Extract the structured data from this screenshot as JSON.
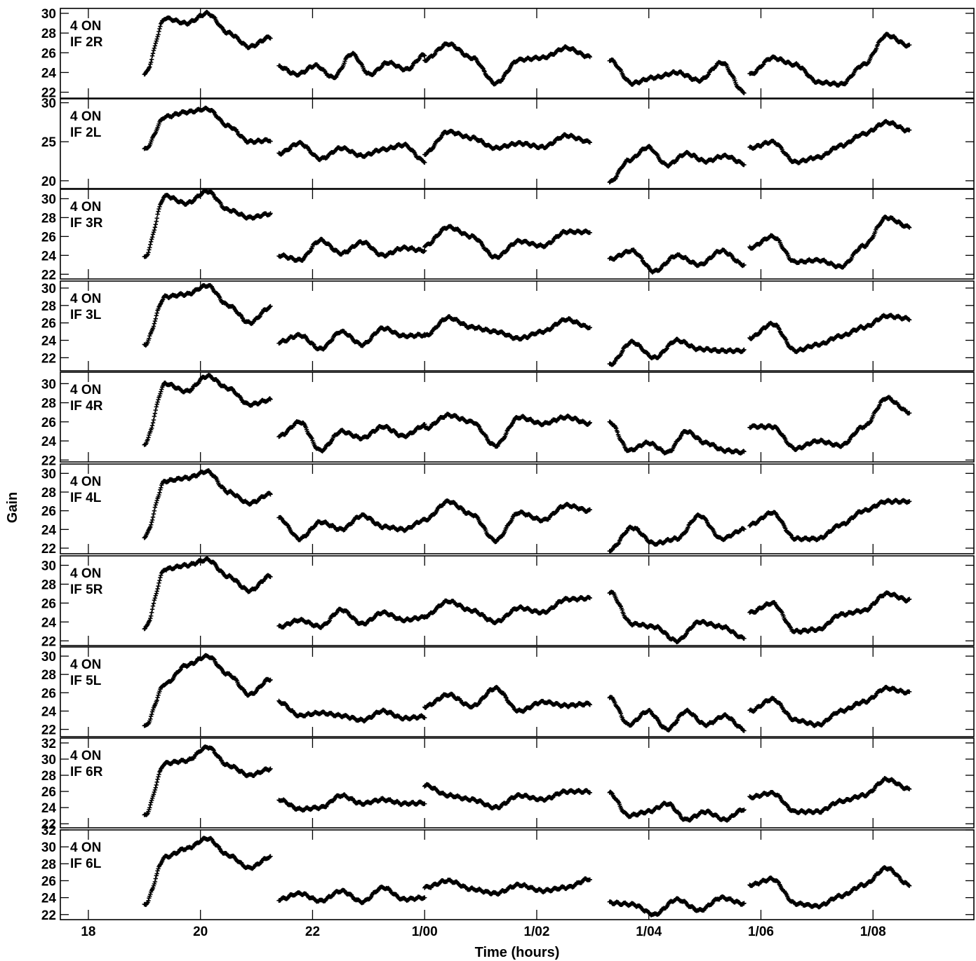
{
  "chart_data": {
    "type": "scatter",
    "title": "",
    "xlabel": "Time (hours)",
    "ylabel": "Gain",
    "xlim": [
      17.5,
      33.8
    ],
    "grid": false,
    "x_ticks": [
      {
        "value": 18,
        "label": "18"
      },
      {
        "value": 20,
        "label": "20"
      },
      {
        "value": 22,
        "label": "22"
      },
      {
        "value": 24,
        "label": "1/00"
      },
      {
        "value": 26,
        "label": "1/02"
      },
      {
        "value": 28,
        "label": "1/04"
      },
      {
        "value": 30,
        "label": "1/06"
      },
      {
        "value": 32,
        "label": "1/08"
      }
    ],
    "segments": [
      [
        19.0,
        21.25
      ],
      [
        21.4,
        24.0
      ],
      [
        24.0,
        26.95
      ],
      [
        27.3,
        29.7
      ],
      [
        29.8,
        32.65
      ]
    ],
    "panels": [
      {
        "label1": "4 ON",
        "label2": "IF 2R",
        "ylim": [
          21.4,
          30.5
        ],
        "yticks": [
          22,
          24,
          26,
          28,
          30
        ],
        "series": [
          [
            23.8,
            29.5,
            29.0,
            30.0,
            28.0,
            26.6,
            27.6
          ],
          [
            24.6,
            23.8,
            24.7,
            23.5,
            25.9,
            23.8,
            25.0,
            24.3,
            25.8
          ],
          [
            25.3,
            26.9,
            25.5,
            22.9,
            25.3,
            25.5,
            26.5,
            25.6
          ],
          [
            25.3,
            22.9,
            23.5,
            24.0,
            23.2,
            25.0,
            22.0
          ],
          [
            23.8,
            25.5,
            24.8,
            23.0,
            22.8,
            24.8,
            27.8,
            26.7
          ]
        ]
      },
      {
        "label1": "4 ON",
        "label2": "IF 2L",
        "ylim": [
          19.0,
          30.5
        ],
        "yticks": [
          20,
          25,
          30
        ],
        "series": [
          [
            24.0,
            28.2,
            28.8,
            29.2,
            27.0,
            25.0,
            25.2
          ],
          [
            23.5,
            24.8,
            22.8,
            24.2,
            23.2,
            24.0,
            24.6,
            22.5
          ],
          [
            23.5,
            26.3,
            25.5,
            24.2,
            24.8,
            24.3,
            25.8,
            25.0
          ],
          [
            19.8,
            22.6,
            24.3,
            22.0,
            23.5,
            22.5,
            23.2,
            22.2
          ],
          [
            24.2,
            25.0,
            22.4,
            23.0,
            24.5,
            26.0,
            27.5,
            26.4
          ]
        ]
      },
      {
        "label1": "4 ON",
        "label2": "IF 3R",
        "ylim": [
          21.5,
          31.0
        ],
        "yticks": [
          22,
          24,
          26,
          28,
          30
        ],
        "series": [
          [
            23.8,
            30.3,
            29.5,
            30.8,
            28.8,
            28.0,
            28.4
          ],
          [
            24.0,
            23.5,
            25.6,
            24.2,
            25.4,
            24.0,
            24.8,
            24.5
          ],
          [
            25.0,
            27.0,
            26.0,
            23.8,
            25.5,
            25.0,
            26.5,
            26.5
          ],
          [
            23.6,
            24.5,
            22.3,
            24.0,
            23.0,
            24.5,
            23.0
          ],
          [
            24.8,
            26.0,
            23.3,
            23.5,
            22.8,
            25.0,
            28.0,
            27.0
          ]
        ]
      },
      {
        "label1": "4 ON",
        "label2": "IF 3L",
        "ylim": [
          20.5,
          30.8
        ],
        "yticks": [
          22,
          24,
          26,
          28,
          30
        ],
        "series": [
          [
            23.5,
            29.0,
            29.3,
            30.3,
            28.0,
            26.0,
            27.8
          ],
          [
            23.8,
            24.6,
            23.0,
            25.0,
            23.5,
            25.4,
            24.5,
            24.6
          ],
          [
            24.5,
            26.6,
            25.5,
            25.0,
            24.2,
            25.0,
            26.4,
            25.5
          ],
          [
            21.2,
            23.8,
            22.0,
            24.0,
            23.0,
            22.8,
            22.8
          ],
          [
            24.3,
            25.9,
            22.8,
            23.5,
            24.5,
            25.5,
            26.8,
            26.5
          ]
        ]
      },
      {
        "label1": "4 ON",
        "label2": "IF 4R",
        "ylim": [
          21.8,
          31.2
        ],
        "yticks": [
          22,
          24,
          26,
          28,
          30
        ],
        "series": [
          [
            23.7,
            30.0,
            29.2,
            30.8,
            29.5,
            27.8,
            28.3
          ],
          [
            24.5,
            26.0,
            23.0,
            25.0,
            24.3,
            25.5,
            24.5,
            25.6
          ],
          [
            25.3,
            26.7,
            26.0,
            23.5,
            26.5,
            25.8,
            26.5,
            25.8
          ],
          [
            26.0,
            23.0,
            23.8,
            22.8,
            25.0,
            23.8,
            23.0,
            22.8
          ],
          [
            25.5,
            25.5,
            23.2,
            24.0,
            23.5,
            25.5,
            28.5,
            27.0
          ]
        ]
      },
      {
        "label1": "4 ON",
        "label2": "IF 4L",
        "ylim": [
          21.4,
          31.0
        ],
        "yticks": [
          22,
          24,
          26,
          28,
          30
        ],
        "series": [
          [
            23.2,
            29.2,
            29.5,
            30.2,
            28.0,
            26.8,
            27.8
          ],
          [
            25.2,
            23.0,
            24.8,
            24.0,
            25.5,
            24.3,
            24.0,
            25.0
          ],
          [
            25.0,
            27.0,
            25.6,
            22.8,
            25.8,
            25.0,
            26.6,
            26.0
          ],
          [
            21.8,
            24.2,
            22.5,
            23.0,
            25.5,
            23.0,
            24.0
          ],
          [
            24.5,
            25.8,
            23.0,
            23.0,
            24.5,
            26.0,
            27.0,
            27.0
          ]
        ]
      },
      {
        "label1": "4 ON",
        "label2": "IF 5R",
        "ylim": [
          21.5,
          31.0
        ],
        "yticks": [
          22,
          24,
          26,
          28,
          30
        ],
        "series": [
          [
            23.3,
            29.6,
            30.0,
            30.6,
            28.8,
            27.3,
            28.9
          ],
          [
            23.5,
            24.2,
            23.5,
            25.3,
            23.8,
            25.0,
            24.2,
            24.5
          ],
          [
            24.6,
            26.2,
            25.2,
            24.0,
            25.5,
            25.0,
            26.4,
            26.5
          ],
          [
            27.2,
            23.8,
            23.5,
            22.0,
            24.0,
            23.5,
            22.3
          ],
          [
            25.0,
            26.0,
            23.0,
            23.2,
            24.8,
            25.2,
            27.0,
            26.3
          ]
        ]
      },
      {
        "label1": "4 ON",
        "label2": "IF 5L",
        "ylim": [
          21.2,
          31.0
        ],
        "yticks": [
          22,
          24,
          26,
          28,
          30
        ],
        "series": [
          [
            22.3,
            27.0,
            29.0,
            30.0,
            28.0,
            25.8,
            27.5
          ],
          [
            25.0,
            23.5,
            23.8,
            23.5,
            23.0,
            24.0,
            23.2,
            23.4
          ],
          [
            24.5,
            25.8,
            24.5,
            26.5,
            24.0,
            25.0,
            24.6,
            24.8
          ],
          [
            25.5,
            22.5,
            24.0,
            22.0,
            24.0,
            22.5,
            23.5,
            22.0
          ],
          [
            24.0,
            25.3,
            23.0,
            22.5,
            24.0,
            25.0,
            26.5,
            26.0
          ]
        ]
      },
      {
        "label1": "4 ON",
        "label2": "IF 6R",
        "ylim": [
          21.5,
          32.6
        ],
        "yticks": [
          22,
          24,
          26,
          28,
          30,
          32
        ],
        "series": [
          [
            23.0,
            29.5,
            29.8,
            31.5,
            29.2,
            28.0,
            28.8
          ],
          [
            25.0,
            23.8,
            24.0,
            25.5,
            24.5,
            25.0,
            24.5,
            24.6
          ],
          [
            26.8,
            25.5,
            25.0,
            24.0,
            25.5,
            25.0,
            26.0,
            26.0
          ],
          [
            25.8,
            23.0,
            23.5,
            24.5,
            22.5,
            23.5,
            22.5,
            23.8
          ],
          [
            25.3,
            25.8,
            23.5,
            23.5,
            24.8,
            25.5,
            27.5,
            26.3
          ]
        ]
      },
      {
        "label1": "4 ON",
        "label2": "IF 6L",
        "ylim": [
          21.4,
          32.0
        ],
        "yticks": [
          22,
          24,
          26,
          28,
          30,
          32
        ],
        "series": [
          [
            23.2,
            28.8,
            29.8,
            31.0,
            29.0,
            27.5,
            28.8
          ],
          [
            23.8,
            24.5,
            23.6,
            24.8,
            23.5,
            25.2,
            23.8,
            24.0
          ],
          [
            25.2,
            26.0,
            25.0,
            24.5,
            25.5,
            24.8,
            25.2,
            26.2
          ],
          [
            23.4,
            23.2,
            22.0,
            23.8,
            22.5,
            24.0,
            23.3
          ],
          [
            25.5,
            26.2,
            23.3,
            23.0,
            24.2,
            25.5,
            27.5,
            25.5
          ]
        ]
      }
    ]
  }
}
